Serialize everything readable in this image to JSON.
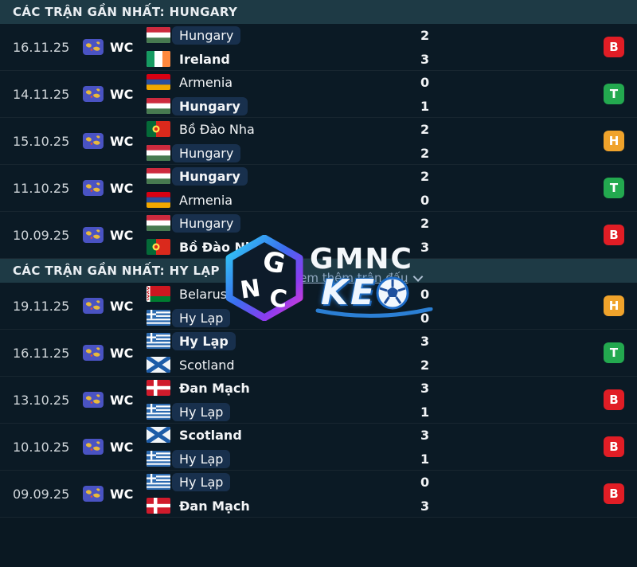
{
  "colors": {
    "win": "#23a94f",
    "loss": "#e11d25",
    "draw": "#f0a32b",
    "header_bg": "#1e3a45",
    "focus_pill_bg": "#18304d",
    "comp_icon_bg": "#4a53c3",
    "page_bg": "#0a1822"
  },
  "sections": [
    {
      "title": "CÁC TRẬN GẦN NHẤT: HUNGARY",
      "matches": [
        {
          "date": "16.11.25",
          "competition": "WC",
          "teams": [
            {
              "name": "Hungary",
              "flag": "hungary",
              "focus": true,
              "winner": false,
              "score": "2"
            },
            {
              "name": "Ireland",
              "flag": "ireland",
              "focus": false,
              "winner": true,
              "score": "3"
            }
          ],
          "result": {
            "label": "B",
            "type": "loss"
          }
        },
        {
          "date": "14.11.25",
          "competition": "WC",
          "teams": [
            {
              "name": "Armenia",
              "flag": "armenia",
              "focus": false,
              "winner": false,
              "score": "0"
            },
            {
              "name": "Hungary",
              "flag": "hungary",
              "focus": true,
              "winner": true,
              "score": "1"
            }
          ],
          "result": {
            "label": "T",
            "type": "win"
          }
        },
        {
          "date": "15.10.25",
          "competition": "WC",
          "teams": [
            {
              "name": "Bồ Đào Nha",
              "flag": "portugal",
              "focus": false,
              "winner": false,
              "score": "2"
            },
            {
              "name": "Hungary",
              "flag": "hungary",
              "focus": true,
              "winner": false,
              "score": "2"
            }
          ],
          "result": {
            "label": "H",
            "type": "draw"
          }
        },
        {
          "date": "11.10.25",
          "competition": "WC",
          "teams": [
            {
              "name": "Hungary",
              "flag": "hungary",
              "focus": true,
              "winner": true,
              "score": "2"
            },
            {
              "name": "Armenia",
              "flag": "armenia",
              "focus": false,
              "winner": false,
              "score": "0"
            }
          ],
          "result": {
            "label": "T",
            "type": "win"
          }
        },
        {
          "date": "10.09.25",
          "competition": "WC",
          "teams": [
            {
              "name": "Hungary",
              "flag": "hungary",
              "focus": true,
              "winner": false,
              "score": "2"
            },
            {
              "name": "Bồ Đào Nha",
              "flag": "portugal",
              "focus": false,
              "winner": true,
              "score": "3"
            }
          ],
          "result": {
            "label": "B",
            "type": "loss"
          }
        }
      ]
    },
    {
      "title": "CÁC TRẬN GẦN NHẤT: HY LẠP",
      "matches": [
        {
          "date": "19.11.25",
          "competition": "WC",
          "teams": [
            {
              "name": "Belarus",
              "flag": "belarus",
              "focus": false,
              "winner": false,
              "score": "0"
            },
            {
              "name": "Hy Lạp",
              "flag": "greece",
              "focus": true,
              "winner": false,
              "score": "0"
            }
          ],
          "result": {
            "label": "H",
            "type": "draw"
          }
        },
        {
          "date": "16.11.25",
          "competition": "WC",
          "teams": [
            {
              "name": "Hy Lạp",
              "flag": "greece",
              "focus": true,
              "winner": true,
              "score": "3"
            },
            {
              "name": "Scotland",
              "flag": "scotland",
              "focus": false,
              "winner": false,
              "score": "2"
            }
          ],
          "result": {
            "label": "T",
            "type": "win"
          }
        },
        {
          "date": "13.10.25",
          "competition": "WC",
          "teams": [
            {
              "name": "Đan Mạch",
              "flag": "denmark",
              "focus": false,
              "winner": true,
              "score": "3"
            },
            {
              "name": "Hy Lạp",
              "flag": "greece",
              "focus": true,
              "winner": false,
              "score": "1"
            }
          ],
          "result": {
            "label": "B",
            "type": "loss"
          }
        },
        {
          "date": "10.10.25",
          "competition": "WC",
          "teams": [
            {
              "name": "Scotland",
              "flag": "scotland",
              "focus": false,
              "winner": true,
              "score": "3"
            },
            {
              "name": "Hy Lạp",
              "flag": "greece",
              "focus": true,
              "winner": false,
              "score": "1"
            }
          ],
          "result": {
            "label": "B",
            "type": "loss"
          }
        },
        {
          "date": "09.09.25",
          "competition": "WC",
          "teams": [
            {
              "name": "Hy Lạp",
              "flag": "greece",
              "focus": true,
              "winner": false,
              "score": "0"
            },
            {
              "name": "Đan Mạch",
              "flag": "denmark",
              "focus": false,
              "winner": true,
              "score": "3"
            }
          ],
          "result": {
            "label": "B",
            "type": "loss"
          }
        }
      ]
    }
  ],
  "watermark": {
    "brand_top": "GMNC",
    "brand_bottom": "KE",
    "more_link": "Xem thêm trận đấu"
  }
}
